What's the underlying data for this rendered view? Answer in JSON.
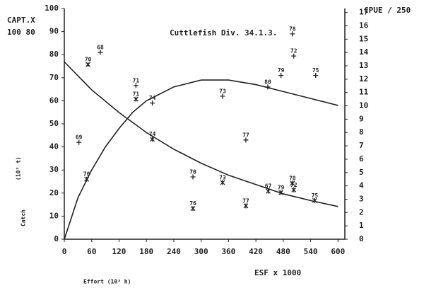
{
  "chart_data": {
    "type": "scatter",
    "title": "Cuttlefish Div. 34.1.3.",
    "ylabel": "CAPT.X",
    "ylabel_sub": "100 80",
    "y2label": "CPUE / 250",
    "xlabel": "ESF x 1000",
    "annotations": [
      "Effort (10³ h)",
      "Catch",
      "(10³ t)"
    ],
    "xlim": [
      0,
      615
    ],
    "xticks": [
      0,
      60,
      120,
      180,
      240,
      300,
      360,
      420,
      480,
      540,
      600
    ],
    "ylim": [
      0,
      100
    ],
    "yticks": [
      0,
      10,
      20,
      30,
      40,
      50,
      60,
      70,
      80,
      90,
      100
    ],
    "y2lim": [
      0,
      17.3
    ],
    "y2ticks": [
      0,
      1,
      2,
      3,
      4,
      5,
      6,
      7,
      8,
      9,
      10,
      11,
      12,
      13,
      14,
      15,
      16,
      17
    ],
    "color": "#222222",
    "series": [
      {
        "marker": "+",
        "labels": [
          "68",
          "69",
          "71",
          "74",
          "73",
          "77",
          "70",
          "80",
          "79",
          "75",
          "78",
          "72"
        ],
        "x": [
          79,
          32,
          157,
          193,
          347,
          398,
          282,
          446,
          475,
          551,
          500,
          503
        ],
        "values": [
          81,
          42,
          66.6,
          59,
          62,
          43,
          27,
          66,
          71,
          71,
          89,
          79.4
        ]
      },
      {
        "marker": "*",
        "axis": "y2",
        "labels": [
          "70",
          "70",
          "71",
          "74",
          "76",
          "73",
          "77",
          "67",
          "79",
          "78",
          "72",
          "75"
        ],
        "x": [
          49,
          52,
          157,
          193,
          282,
          347,
          398,
          447,
          475,
          500,
          503,
          549
        ],
        "values": [
          4.5,
          13.1,
          10.5,
          7.5,
          2.3,
          4.25,
          2.5,
          3.6,
          3.5,
          4.2,
          3.7,
          2.9
        ]
      },
      {
        "type": "line",
        "x": [
          0,
          30,
          60,
          90,
          120,
          150,
          180,
          240,
          300,
          360,
          420,
          480,
          540,
          600
        ],
        "values": [
          0,
          18,
          30,
          40,
          48,
          55,
          60,
          66,
          69,
          69,
          67,
          64,
          61,
          58
        ]
      },
      {
        "type": "line",
        "axis": "y2",
        "x": [
          0,
          60,
          120,
          180,
          240,
          300,
          360,
          420,
          480,
          540,
          600
        ],
        "values": [
          13.3,
          11.2,
          9.5,
          8.0,
          6.75,
          5.7,
          4.8,
          4.1,
          3.4,
          2.9,
          2.45
        ]
      }
    ]
  }
}
